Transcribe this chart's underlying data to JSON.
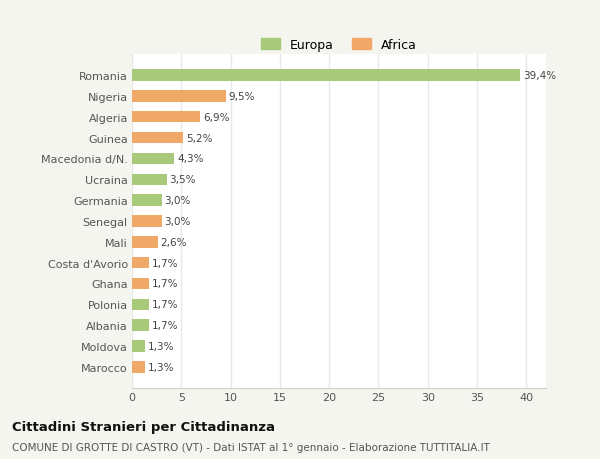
{
  "categories": [
    "Marocco",
    "Moldova",
    "Albania",
    "Polonia",
    "Ghana",
    "Costa d'Avorio",
    "Mali",
    "Senegal",
    "Germania",
    "Ucraina",
    "Macedonia d/N.",
    "Guinea",
    "Algeria",
    "Nigeria",
    "Romania"
  ],
  "values": [
    1.3,
    1.3,
    1.7,
    1.7,
    1.7,
    1.7,
    2.6,
    3.0,
    3.0,
    3.5,
    4.3,
    5.2,
    6.9,
    9.5,
    39.4
  ],
  "labels": [
    "1,3%",
    "1,3%",
    "1,7%",
    "1,7%",
    "1,7%",
    "1,7%",
    "2,6%",
    "3,0%",
    "3,0%",
    "3,5%",
    "4,3%",
    "5,2%",
    "6,9%",
    "9,5%",
    "39,4%"
  ],
  "colors": [
    "#f0a868",
    "#a8c87a",
    "#a8c87a",
    "#a8c87a",
    "#f0a868",
    "#f0a868",
    "#f0a868",
    "#f0a868",
    "#a8c87a",
    "#a8c87a",
    "#a8c87a",
    "#f0a868",
    "#f0a868",
    "#f0a868",
    "#a8c87a"
  ],
  "europa_color": "#a8c87a",
  "africa_color": "#f0a868",
  "fig_bg_color": "#f5f5f0",
  "plot_bg_color": "#ffffff",
  "title": "Cittadini Stranieri per Cittadinanza",
  "subtitle": "COMUNE DI GROTTE DI CASTRO (VT) - Dati ISTAT al 1° gennaio - Elaborazione TUTTITALIA.IT",
  "xlim": [
    0,
    42
  ],
  "xticks": [
    0,
    5,
    10,
    15,
    20,
    25,
    30,
    35,
    40
  ],
  "bar_height": 0.55,
  "label_fontsize": 7.5,
  "tick_fontsize": 8,
  "title_fontsize": 9.5,
  "subtitle_fontsize": 7.5
}
